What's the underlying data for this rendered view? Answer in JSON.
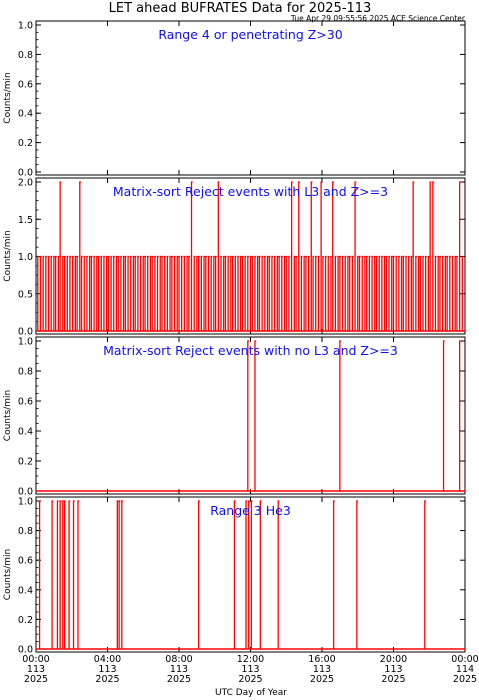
{
  "page": {
    "title": "LET ahead BUFRATES Data for 2025-113",
    "timestamp": "Tue Apr 29 09:55:56 2025 ACE Science Center"
  },
  "colors": {
    "data": "#ff0000",
    "panel_title": "#1010ee",
    "axes": "#000000"
  },
  "x_axis": {
    "label": "UTC Day of Year",
    "range_hours": [
      0,
      24
    ],
    "ticks": [
      {
        "hour": 0,
        "time": "00:00",
        "doy": "113",
        "year": "2025"
      },
      {
        "hour": 4,
        "time": "04:00",
        "doy": "113",
        "year": "2025"
      },
      {
        "hour": 8,
        "time": "08:00",
        "doy": "113",
        "year": "2025"
      },
      {
        "hour": 12,
        "time": "12:00",
        "doy": "113",
        "year": "2025"
      },
      {
        "hour": 16,
        "time": "16:00",
        "doy": "113",
        "year": "2025"
      },
      {
        "hour": 20,
        "time": "20:00",
        "doy": "113",
        "year": "2025"
      },
      {
        "hour": 24,
        "time": "00:00",
        "doy": "114",
        "year": "2025"
      }
    ]
  },
  "chart_data": [
    {
      "type": "line",
      "title": "Range 4 or  penetrating Z>30",
      "ylabel": "Counts/min",
      "ylim": [
        0,
        1
      ],
      "yticks": [
        "0.0",
        "0.2",
        "0.4",
        "0.6",
        "0.8",
        "1.0"
      ],
      "ytick_values": [
        0,
        0.2,
        0.4,
        0.6,
        0.8,
        1.0
      ],
      "events": []
    },
    {
      "type": "line",
      "title": "Matrix-sort Reject events with L3 and Z>=3",
      "ylabel": "Counts/min",
      "ylim": [
        0,
        2
      ],
      "yticks": [
        "0.0",
        "0.5",
        "1.0",
        "1.5",
        "2.0"
      ],
      "ytick_values": [
        0,
        0.5,
        1.0,
        1.5,
        2.0
      ],
      "events": [
        {
          "hour": 0.1,
          "value": 1
        },
        {
          "hour": 0.25,
          "value": 1
        },
        {
          "hour": 0.4,
          "value": 1
        },
        {
          "hour": 0.55,
          "value": 1
        },
        {
          "hour": 0.7,
          "value": 1
        },
        {
          "hour": 0.85,
          "value": 1
        },
        {
          "hour": 1.0,
          "value": 1
        },
        {
          "hour": 1.1,
          "value": 1
        },
        {
          "hour": 1.25,
          "value": 1
        },
        {
          "hour": 1.35,
          "value": 2
        },
        {
          "hour": 1.5,
          "value": 1
        },
        {
          "hour": 1.6,
          "value": 1
        },
        {
          "hour": 1.75,
          "value": 1
        },
        {
          "hour": 1.9,
          "value": 1
        },
        {
          "hour": 2.05,
          "value": 1
        },
        {
          "hour": 2.2,
          "value": 1
        },
        {
          "hour": 2.3,
          "value": 1
        },
        {
          "hour": 2.45,
          "value": 2
        },
        {
          "hour": 2.55,
          "value": 1
        },
        {
          "hour": 2.7,
          "value": 1
        },
        {
          "hour": 2.85,
          "value": 1
        },
        {
          "hour": 3.0,
          "value": 1
        },
        {
          "hour": 3.1,
          "value": 1
        },
        {
          "hour": 3.25,
          "value": 1
        },
        {
          "hour": 3.4,
          "value": 1
        },
        {
          "hour": 3.5,
          "value": 1
        },
        {
          "hour": 3.65,
          "value": 1
        },
        {
          "hour": 3.8,
          "value": 1
        },
        {
          "hour": 3.95,
          "value": 1
        },
        {
          "hour": 4.05,
          "value": 1
        },
        {
          "hour": 4.2,
          "value": 1
        },
        {
          "hour": 4.35,
          "value": 1
        },
        {
          "hour": 4.5,
          "value": 1
        },
        {
          "hour": 4.6,
          "value": 1
        },
        {
          "hour": 4.75,
          "value": 1
        },
        {
          "hour": 4.9,
          "value": 1
        },
        {
          "hour": 5.0,
          "value": 1
        },
        {
          "hour": 5.15,
          "value": 1
        },
        {
          "hour": 5.3,
          "value": 1
        },
        {
          "hour": 5.45,
          "value": 1
        },
        {
          "hour": 5.55,
          "value": 1
        },
        {
          "hour": 5.7,
          "value": 1
        },
        {
          "hour": 5.85,
          "value": 1
        },
        {
          "hour": 6.0,
          "value": 1
        },
        {
          "hour": 6.1,
          "value": 1
        },
        {
          "hour": 6.25,
          "value": 1
        },
        {
          "hour": 6.4,
          "value": 1
        },
        {
          "hour": 6.5,
          "value": 1
        },
        {
          "hour": 6.65,
          "value": 1
        },
        {
          "hour": 6.8,
          "value": 1
        },
        {
          "hour": 6.95,
          "value": 1
        },
        {
          "hour": 7.05,
          "value": 1
        },
        {
          "hour": 7.2,
          "value": 1
        },
        {
          "hour": 7.35,
          "value": 1
        },
        {
          "hour": 7.5,
          "value": 1
        },
        {
          "hour": 7.6,
          "value": 1
        },
        {
          "hour": 7.75,
          "value": 1
        },
        {
          "hour": 7.9,
          "value": 1
        },
        {
          "hour": 8.0,
          "value": 1
        },
        {
          "hour": 8.15,
          "value": 1
        },
        {
          "hour": 8.3,
          "value": 1
        },
        {
          "hour": 8.45,
          "value": 1
        },
        {
          "hour": 8.55,
          "value": 1
        },
        {
          "hour": 8.7,
          "value": 2
        },
        {
          "hour": 8.85,
          "value": 1
        },
        {
          "hour": 9.0,
          "value": 1
        },
        {
          "hour": 9.1,
          "value": 1
        },
        {
          "hour": 9.25,
          "value": 1
        },
        {
          "hour": 9.4,
          "value": 1
        },
        {
          "hour": 9.5,
          "value": 1
        },
        {
          "hour": 9.65,
          "value": 1
        },
        {
          "hour": 9.8,
          "value": 1
        },
        {
          "hour": 9.95,
          "value": 1
        },
        {
          "hour": 10.05,
          "value": 1
        },
        {
          "hour": 10.2,
          "value": 2
        },
        {
          "hour": 10.35,
          "value": 1
        },
        {
          "hour": 10.5,
          "value": 1
        },
        {
          "hour": 10.6,
          "value": 1
        },
        {
          "hour": 10.75,
          "value": 1
        },
        {
          "hour": 10.9,
          "value": 1
        },
        {
          "hour": 11.0,
          "value": 1
        },
        {
          "hour": 11.15,
          "value": 1
        },
        {
          "hour": 11.3,
          "value": 1
        },
        {
          "hour": 11.45,
          "value": 1
        },
        {
          "hour": 11.55,
          "value": 1
        },
        {
          "hour": 11.7,
          "value": 1
        },
        {
          "hour": 11.85,
          "value": 1
        },
        {
          "hour": 12.0,
          "value": 1
        },
        {
          "hour": 12.1,
          "value": 1
        },
        {
          "hour": 12.25,
          "value": 1
        },
        {
          "hour": 12.4,
          "value": 1
        },
        {
          "hour": 12.5,
          "value": 1
        },
        {
          "hour": 12.65,
          "value": 1
        },
        {
          "hour": 12.8,
          "value": 1
        },
        {
          "hour": 12.95,
          "value": 1
        },
        {
          "hour": 13.05,
          "value": 1
        },
        {
          "hour": 13.2,
          "value": 1
        },
        {
          "hour": 13.35,
          "value": 1
        },
        {
          "hour": 13.5,
          "value": 1
        },
        {
          "hour": 13.6,
          "value": 1
        },
        {
          "hour": 13.75,
          "value": 1
        },
        {
          "hour": 13.9,
          "value": 1
        },
        {
          "hour": 14.0,
          "value": 1
        },
        {
          "hour": 14.15,
          "value": 1
        },
        {
          "hour": 14.3,
          "value": 2
        },
        {
          "hour": 14.45,
          "value": 1
        },
        {
          "hour": 14.55,
          "value": 1
        },
        {
          "hour": 14.7,
          "value": 2
        },
        {
          "hour": 14.85,
          "value": 1
        },
        {
          "hour": 15.0,
          "value": 1
        },
        {
          "hour": 15.1,
          "value": 1
        },
        {
          "hour": 15.25,
          "value": 1
        },
        {
          "hour": 15.4,
          "value": 2
        },
        {
          "hour": 15.5,
          "value": 1
        },
        {
          "hour": 15.65,
          "value": 1
        },
        {
          "hour": 15.8,
          "value": 1
        },
        {
          "hour": 15.95,
          "value": 2
        },
        {
          "hour": 16.05,
          "value": 1
        },
        {
          "hour": 16.2,
          "value": 1
        },
        {
          "hour": 16.35,
          "value": 1
        },
        {
          "hour": 16.5,
          "value": 1
        },
        {
          "hour": 16.6,
          "value": 2
        },
        {
          "hour": 16.75,
          "value": 1
        },
        {
          "hour": 16.9,
          "value": 1
        },
        {
          "hour": 17.0,
          "value": 1
        },
        {
          "hour": 17.15,
          "value": 1
        },
        {
          "hour": 17.3,
          "value": 1
        },
        {
          "hour": 17.45,
          "value": 1
        },
        {
          "hour": 17.55,
          "value": 1
        },
        {
          "hour": 17.7,
          "value": 1
        },
        {
          "hour": 17.85,
          "value": 2
        },
        {
          "hour": 18.0,
          "value": 1
        },
        {
          "hour": 18.1,
          "value": 1
        },
        {
          "hour": 18.25,
          "value": 1
        },
        {
          "hour": 18.4,
          "value": 1
        },
        {
          "hour": 18.5,
          "value": 1
        },
        {
          "hour": 18.65,
          "value": 1
        },
        {
          "hour": 18.8,
          "value": 1
        },
        {
          "hour": 18.95,
          "value": 1
        },
        {
          "hour": 19.05,
          "value": 1
        },
        {
          "hour": 19.2,
          "value": 1
        },
        {
          "hour": 19.35,
          "value": 1
        },
        {
          "hour": 19.5,
          "value": 1
        },
        {
          "hour": 19.6,
          "value": 1
        },
        {
          "hour": 19.75,
          "value": 1
        },
        {
          "hour": 19.9,
          "value": 1
        },
        {
          "hour": 20.0,
          "value": 1
        },
        {
          "hour": 20.15,
          "value": 1
        },
        {
          "hour": 20.3,
          "value": 1
        },
        {
          "hour": 20.45,
          "value": 1
        },
        {
          "hour": 20.55,
          "value": 1
        },
        {
          "hour": 20.7,
          "value": 1
        },
        {
          "hour": 20.85,
          "value": 1
        },
        {
          "hour": 21.0,
          "value": 1
        },
        {
          "hour": 21.1,
          "value": 2
        },
        {
          "hour": 21.25,
          "value": 1
        },
        {
          "hour": 21.4,
          "value": 1
        },
        {
          "hour": 21.5,
          "value": 1
        },
        {
          "hour": 21.65,
          "value": 1
        },
        {
          "hour": 21.8,
          "value": 1
        },
        {
          "hour": 21.95,
          "value": 1
        },
        {
          "hour": 22.05,
          "value": 2
        },
        {
          "hour": 22.2,
          "value": 2
        },
        {
          "hour": 22.35,
          "value": 1
        },
        {
          "hour": 22.5,
          "value": 1
        },
        {
          "hour": 22.6,
          "value": 1
        },
        {
          "hour": 22.75,
          "value": 1
        },
        {
          "hour": 22.9,
          "value": 1
        },
        {
          "hour": 23.0,
          "value": 1
        },
        {
          "hour": 23.15,
          "value": 1
        },
        {
          "hour": 23.3,
          "value": 1
        },
        {
          "hour": 23.45,
          "value": 1
        },
        {
          "hour": 23.55,
          "value": 1
        },
        {
          "hour": 23.7,
          "value": 2
        },
        {
          "hour": 23.85,
          "value": 1
        }
      ]
    },
    {
      "type": "line",
      "title": "Matrix-sort Reject events with no L3 and Z>=3",
      "ylabel": "Counts/min",
      "ylim": [
        0,
        1
      ],
      "yticks": [
        "0.0",
        "0.2",
        "0.4",
        "0.6",
        "0.8",
        "1.0"
      ],
      "ytick_values": [
        0,
        0.2,
        0.4,
        0.6,
        0.8,
        1.0
      ],
      "events": [
        {
          "hour": 11.85,
          "value": 1
        },
        {
          "hour": 12.25,
          "value": 1
        },
        {
          "hour": 17.0,
          "value": 1
        },
        {
          "hour": 22.8,
          "value": 1
        },
        {
          "hour": 23.7,
          "value": 1
        }
      ]
    },
    {
      "type": "line",
      "title": "Range 3 He3",
      "ylabel": "Counts/min",
      "ylim": [
        0,
        1
      ],
      "yticks": [
        "0.0",
        "0.2",
        "0.4",
        "0.6",
        "0.8",
        "1.0"
      ],
      "ytick_values": [
        0,
        0.2,
        0.4,
        0.6,
        0.8,
        1.0
      ],
      "events": [
        {
          "hour": 0.2,
          "value": 1
        },
        {
          "hour": 0.9,
          "value": 1
        },
        {
          "hour": 1.2,
          "value": 1
        },
        {
          "hour": 1.35,
          "value": 1
        },
        {
          "hour": 1.5,
          "value": 1
        },
        {
          "hour": 1.6,
          "value": 1
        },
        {
          "hour": 1.85,
          "value": 1
        },
        {
          "hour": 2.1,
          "value": 1
        },
        {
          "hour": 2.35,
          "value": 1
        },
        {
          "hour": 4.55,
          "value": 1
        },
        {
          "hour": 4.65,
          "value": 1
        },
        {
          "hour": 4.8,
          "value": 1
        },
        {
          "hour": 9.1,
          "value": 1
        },
        {
          "hour": 11.1,
          "value": 1
        },
        {
          "hour": 11.75,
          "value": 1
        },
        {
          "hour": 11.9,
          "value": 1
        },
        {
          "hour": 12.05,
          "value": 1
        },
        {
          "hour": 12.55,
          "value": 1
        },
        {
          "hour": 13.55,
          "value": 1
        },
        {
          "hour": 16.65,
          "value": 1
        },
        {
          "hour": 17.95,
          "value": 1
        },
        {
          "hour": 21.75,
          "value": 1
        }
      ]
    }
  ]
}
